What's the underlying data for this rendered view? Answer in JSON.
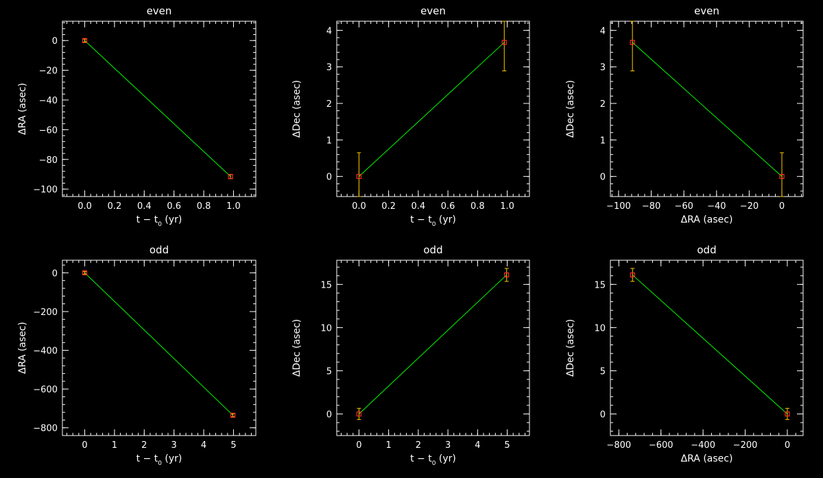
{
  "colors": {
    "background": "#000000",
    "axes": "#ffffff",
    "fit_line": "#00ff00",
    "points": "#ff2a2a",
    "error_bars": "#ffcc00"
  },
  "chart_data": [
    {
      "type": "scatter",
      "title": "even",
      "xlabel": {
        "main": "t − t",
        "sub": "0",
        "tail": " (yr)"
      },
      "ylabel": "ΔRA (asec)",
      "xlim": [
        -0.15,
        1.15
      ],
      "ylim": [
        -105,
        13
      ],
      "xticks": [
        0.0,
        0.2,
        0.4,
        0.6,
        0.8,
        1.0
      ],
      "xticklabels": [
        "0.0",
        "0.2",
        "0.4",
        "0.6",
        "0.8",
        "1.0"
      ],
      "yticks": [
        -100,
        -80,
        -60,
        -40,
        -20,
        0
      ],
      "yticklabels": [
        "−100",
        "−80",
        "−60",
        "−40",
        "−20",
        "0"
      ],
      "points": [
        {
          "x": 0.0,
          "y": 0.0,
          "err": 1.0
        },
        {
          "x": 0.98,
          "y": -91.5,
          "err": 1.5
        }
      ]
    },
    {
      "type": "scatter",
      "title": "even",
      "xlabel": {
        "main": "t − t",
        "sub": "0",
        "tail": " (yr)"
      },
      "ylabel": "ΔDec (asec)",
      "xlim": [
        -0.15,
        1.15
      ],
      "ylim": [
        -0.55,
        4.25
      ],
      "xticks": [
        0.0,
        0.2,
        0.4,
        0.6,
        0.8,
        1.0
      ],
      "xticklabels": [
        "0.0",
        "0.2",
        "0.4",
        "0.6",
        "0.8",
        "1.0"
      ],
      "yticks": [
        0,
        1,
        2,
        3,
        4
      ],
      "yticklabels": [
        "0",
        "1",
        "2",
        "3",
        "4"
      ],
      "points": [
        {
          "x": 0.0,
          "y": 0.0,
          "err": 0.65
        },
        {
          "x": 0.98,
          "y": 3.67,
          "err": 0.78
        }
      ]
    },
    {
      "type": "scatter",
      "title": "even",
      "xlabel": {
        "main": "ΔRA (asec)",
        "sub": "",
        "tail": ""
      },
      "ylabel": "ΔDec (asec)",
      "xlim": [
        -105,
        13
      ],
      "ylim": [
        -0.55,
        4.25
      ],
      "xticks": [
        -100,
        -80,
        -60,
        -40,
        -20,
        0
      ],
      "xticklabels": [
        "−100",
        "−80",
        "−60",
        "−40",
        "−20",
        "0"
      ],
      "yticks": [
        0,
        1,
        2,
        3,
        4
      ],
      "yticklabels": [
        "0",
        "1",
        "2",
        "3",
        "4"
      ],
      "points": [
        {
          "x": 0.0,
          "y": 0.0,
          "err": 0.65
        },
        {
          "x": -91.5,
          "y": 3.67,
          "err": 0.78
        }
      ]
    },
    {
      "type": "scatter",
      "title": "odd",
      "xlabel": {
        "main": "t − t",
        "sub": "0",
        "tail": " (yr)"
      },
      "ylabel": "ΔRA (asec)",
      "xlim": [
        -0.75,
        5.75
      ],
      "ylim": [
        -840,
        65
      ],
      "xticks": [
        0,
        1,
        2,
        3,
        4,
        5
      ],
      "xticklabels": [
        "0",
        "1",
        "2",
        "3",
        "4",
        "5"
      ],
      "yticks": [
        -800,
        -600,
        -400,
        -200,
        0
      ],
      "yticklabels": [
        "−800",
        "−600",
        "−400",
        "−200",
        "0"
      ],
      "points": [
        {
          "x": 0.0,
          "y": 0.0,
          "err": 6
        },
        {
          "x": 4.98,
          "y": -735,
          "err": 8
        }
      ]
    },
    {
      "type": "scatter",
      "title": "odd",
      "xlabel": {
        "main": "t − t",
        "sub": "0",
        "tail": " (yr)"
      },
      "ylabel": "ΔDec (asec)",
      "xlim": [
        -0.75,
        5.75
      ],
      "ylim": [
        -2.5,
        17.8
      ],
      "xticks": [
        0,
        1,
        2,
        3,
        4,
        5
      ],
      "xticklabels": [
        "0",
        "1",
        "2",
        "3",
        "4",
        "5"
      ],
      "yticks": [
        0,
        5,
        10,
        15
      ],
      "yticklabels": [
        "0",
        "5",
        "10",
        "15"
      ],
      "points": [
        {
          "x": 0.0,
          "y": 0.0,
          "err": 0.65
        },
        {
          "x": 4.98,
          "y": 16.1,
          "err": 0.75
        }
      ]
    },
    {
      "type": "scatter",
      "title": "odd",
      "xlabel": {
        "main": "ΔRA (asec)",
        "sub": "",
        "tail": ""
      },
      "ylabel": "ΔDec (asec)",
      "xlim": [
        -840,
        75
      ],
      "ylim": [
        -2.5,
        17.8
      ],
      "xticks": [
        -800,
        -600,
        -400,
        -200,
        0
      ],
      "xticklabels": [
        "−800",
        "−600",
        "−400",
        "−200",
        "0"
      ],
      "yticks": [
        0,
        5,
        10,
        15
      ],
      "yticklabels": [
        "0",
        "5",
        "10",
        "15"
      ],
      "points": [
        {
          "x": 0.0,
          "y": 0.0,
          "err": 0.65
        },
        {
          "x": -735,
          "y": 16.1,
          "err": 0.75
        }
      ]
    }
  ]
}
